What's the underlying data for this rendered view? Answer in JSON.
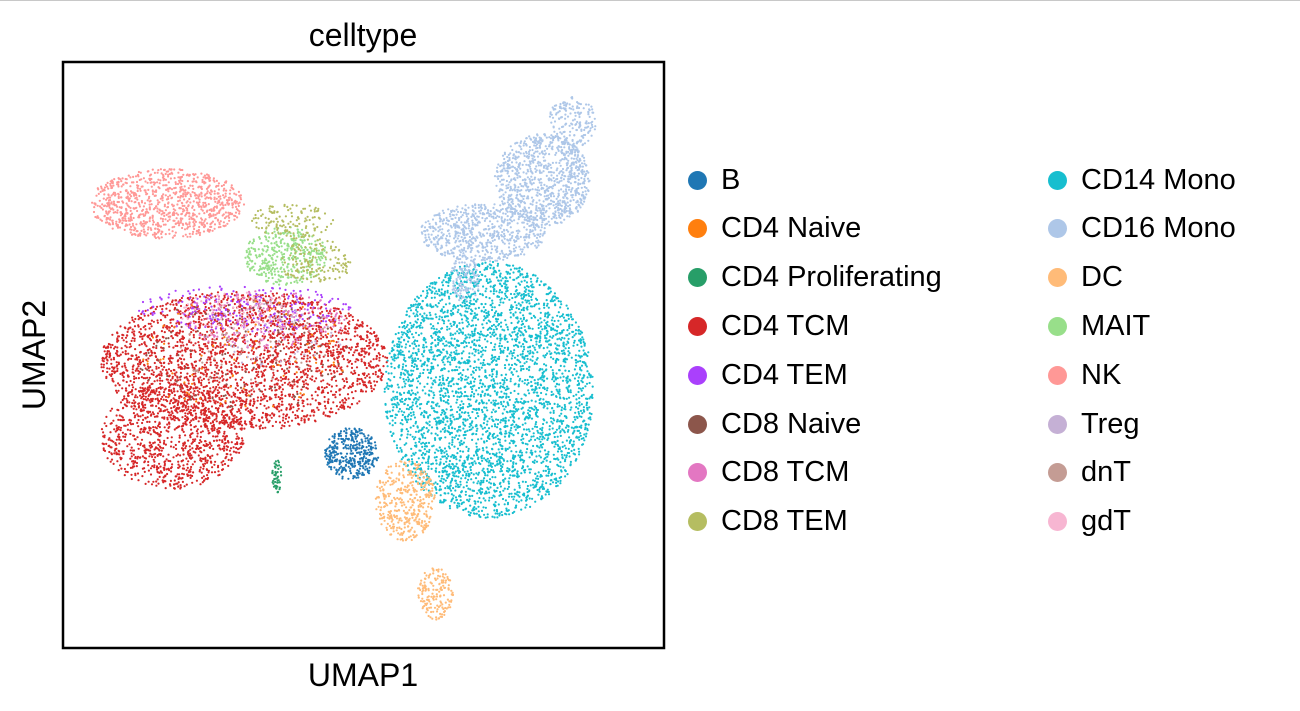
{
  "chart_data": {
    "type": "scatter",
    "title": "celltype",
    "xlabel": "UMAP1",
    "ylabel": "UMAP2",
    "xlim": [
      0,
      100
    ],
    "ylim": [
      0,
      100
    ],
    "grid": false,
    "axis_ticks": false,
    "legend_placement": "right, two columns",
    "series": [
      {
        "name": "B",
        "color": "#1f77b4"
      },
      {
        "name": "CD4 Naive",
        "color": "#ff7f0e"
      },
      {
        "name": "CD4 Proliferating",
        "color": "#279e68"
      },
      {
        "name": "CD4 TCM",
        "color": "#d62728"
      },
      {
        "name": "CD4 TEM",
        "color": "#aa40fc"
      },
      {
        "name": "CD8 Naive",
        "color": "#8c564b"
      },
      {
        "name": "CD8 TCM",
        "color": "#e377c2"
      },
      {
        "name": "CD8 TEM",
        "color": "#b5bd61"
      },
      {
        "name": "CD14 Mono",
        "color": "#17becf"
      },
      {
        "name": "CD16 Mono",
        "color": "#aec7e8"
      },
      {
        "name": "DC",
        "color": "#ffbb78"
      },
      {
        "name": "MAIT",
        "color": "#98df8a"
      },
      {
        "name": "NK",
        "color": "#ff9896"
      },
      {
        "name": "Treg",
        "color": "#c5b0d5"
      },
      {
        "name": "dnT",
        "color": "#c49c94"
      },
      {
        "name": "gdT",
        "color": "#f7b6d2"
      }
    ],
    "clusters": [
      {
        "type": "CD14 Mono",
        "cx": 71,
        "cy": 44,
        "rx": 17.5,
        "ry": 22,
        "n": 3600
      },
      {
        "type": "CD16 Mono",
        "cx": 80,
        "cy": 80,
        "rx": 8,
        "ry": 8,
        "n": 900
      },
      {
        "type": "CD16 Mono",
        "cx": 70,
        "cy": 71,
        "rx": 10.5,
        "ry": 5,
        "n": 650
      },
      {
        "type": "CD16 Mono",
        "cx": 85,
        "cy": 90,
        "rx": 4,
        "ry": 4.5,
        "n": 180
      },
      {
        "type": "CD16 Mono",
        "cx": 67,
        "cy": 63,
        "rx": 2.5,
        "ry": 4,
        "n": 120
      },
      {
        "type": "NK",
        "cx": 17,
        "cy": 76,
        "rx": 13,
        "ry": 6,
        "n": 950
      },
      {
        "type": "MAIT",
        "cx": 37,
        "cy": 67,
        "rx": 7,
        "ry": 5,
        "n": 380
      },
      {
        "type": "CD8 TEM",
        "cx": 42,
        "cy": 66,
        "rx": 6,
        "ry": 4,
        "n": 140
      },
      {
        "type": "CD8 TEM",
        "cx": 38,
        "cy": 73,
        "rx": 7,
        "ry": 3,
        "n": 130
      },
      {
        "type": "CD4 TCM",
        "cx": 30,
        "cy": 49,
        "rx": 24,
        "ry": 12,
        "n": 2600
      },
      {
        "type": "CD4 TCM",
        "cx": 18,
        "cy": 36,
        "rx": 12,
        "ry": 9,
        "n": 900
      },
      {
        "type": "CD4 TEM",
        "cx": 30,
        "cy": 58,
        "rx": 18,
        "ry": 4,
        "n": 220
      },
      {
        "type": "CD8 TCM",
        "cx": 33,
        "cy": 56,
        "rx": 14,
        "ry": 5,
        "n": 180
      },
      {
        "type": "CD8 Naive",
        "cx": 30,
        "cy": 50,
        "rx": 18,
        "ry": 10,
        "n": 120
      },
      {
        "type": "CD4 Naive",
        "cx": 30,
        "cy": 50,
        "rx": 18,
        "ry": 10,
        "n": 80
      },
      {
        "type": "gdT",
        "cx": 29,
        "cy": 57,
        "rx": 10,
        "ry": 4,
        "n": 80
      },
      {
        "type": "Treg",
        "cx": 35,
        "cy": 54,
        "rx": 12,
        "ry": 6,
        "n": 70
      },
      {
        "type": "dnT",
        "cx": 32,
        "cy": 52,
        "rx": 14,
        "ry": 8,
        "n": 50
      },
      {
        "type": "B",
        "cx": 48,
        "cy": 33,
        "rx": 4.5,
        "ry": 4.5,
        "n": 360
      },
      {
        "type": "DC",
        "cx": 57,
        "cy": 25,
        "rx": 5,
        "ry": 7,
        "n": 380
      },
      {
        "type": "DC",
        "cx": 62,
        "cy": 9,
        "rx": 3,
        "ry": 4.5,
        "n": 160
      },
      {
        "type": "CD4 Proliferating",
        "cx": 35.5,
        "cy": 29,
        "rx": 0.8,
        "ry": 3,
        "n": 50
      }
    ]
  }
}
